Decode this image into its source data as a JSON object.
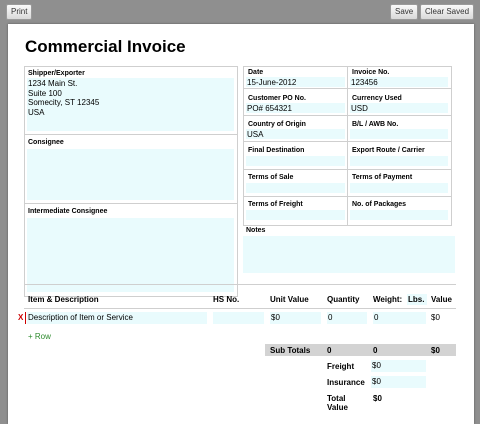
{
  "toolbar": {
    "print": "Print",
    "save": "Save",
    "clear_saved": "Clear Saved"
  },
  "invoice": {
    "title": "Commercial Invoice",
    "shipper": {
      "label": "Shipper/Exporter",
      "lines": [
        "1234 Main St.",
        "Suite 100",
        "Somecity, ST 12345",
        "USA"
      ]
    },
    "consignee": {
      "label": "Consignee",
      "value": ""
    },
    "intermediate_consignee": {
      "label": "Intermediate Consignee",
      "value": ""
    },
    "date": {
      "label": "Date",
      "value": "15-June-2012"
    },
    "invoice_no": {
      "label": "Invoice No.",
      "value": "123456"
    },
    "customer_po": {
      "label": "Customer PO No.",
      "value": "PO# 654321"
    },
    "currency": {
      "label": "Currency Used",
      "value": "USD"
    },
    "country_origin": {
      "label": "Country of Origin",
      "value": "USA"
    },
    "bl_awb": {
      "label": "B/L / AWB No.",
      "value": ""
    },
    "final_destination": {
      "label": "Final Destination",
      "value": ""
    },
    "export_route": {
      "label": "Export Route / Carrier",
      "value": ""
    },
    "terms_sale": {
      "label": "Terms of Sale",
      "value": ""
    },
    "terms_payment": {
      "label": "Terms of Payment",
      "value": ""
    },
    "terms_freight": {
      "label": "Terms of Freight",
      "value": ""
    },
    "num_packages": {
      "label": "No. of Packages",
      "value": ""
    },
    "notes": {
      "label": "Notes",
      "value": ""
    }
  },
  "items": {
    "headers": {
      "item": "Item & Description",
      "hs": "HS No.",
      "unit_value": "Unit Value",
      "quantity": "Quantity",
      "weight": "Weight:",
      "weight_unit": "Lbs.",
      "value": "Value"
    },
    "rows": [
      {
        "delete": "X",
        "description": "Description of Item or Service",
        "hs": "",
        "unit_value": "$0",
        "quantity": "0",
        "weight": "0",
        "value": "$0"
      }
    ],
    "add_row": "+ Row"
  },
  "totals": {
    "subtotals_label": "Sub Totals",
    "sub_quantity": "0",
    "sub_weight": "0",
    "sub_value": "$0",
    "freight_label": "Freight",
    "freight_value": "$0",
    "insurance_label": "Insurance",
    "insurance_value": "$0",
    "total_label_1": "Total",
    "total_label_2": "Value",
    "total_value": "$0"
  }
}
